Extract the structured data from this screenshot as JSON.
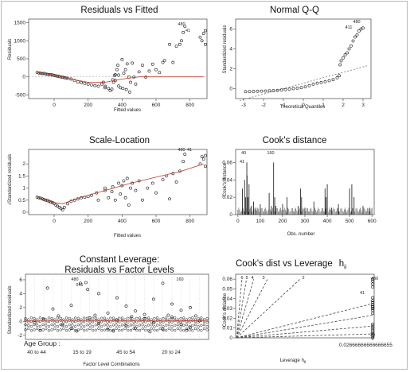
{
  "chart_data": [
    {
      "id": "rvf",
      "type": "scatter",
      "title": "Residuals vs Fitted",
      "xlabel": "Fitted values",
      "ylabel": "Residuals",
      "xlim": [
        -150,
        900
      ],
      "ylim": [
        -600,
        1600
      ],
      "xticks": [
        0,
        200,
        400,
        600,
        800
      ],
      "yticks": [
        -500,
        0,
        500,
        1000,
        1500
      ],
      "point_labels": [
        "480",
        "41"
      ],
      "points": [
        [
          -100,
          120
        ],
        [
          -90,
          110
        ],
        [
          -80,
          100
        ],
        [
          -70,
          90
        ],
        [
          -60,
          95
        ],
        [
          -50,
          80
        ],
        [
          -40,
          70
        ],
        [
          -30,
          65
        ],
        [
          -20,
          60
        ],
        [
          -10,
          55
        ],
        [
          0,
          40
        ],
        [
          10,
          30
        ],
        [
          20,
          20
        ],
        [
          30,
          10
        ],
        [
          40,
          0
        ],
        [
          50,
          -10
        ],
        [
          60,
          -20
        ],
        [
          70,
          -30
        ],
        [
          80,
          -40
        ],
        [
          100,
          -60
        ],
        [
          120,
          -100
        ],
        [
          140,
          -140
        ],
        [
          160,
          -160
        ],
        [
          180,
          -180
        ],
        [
          200,
          -200
        ],
        [
          220,
          -220
        ],
        [
          240,
          -240
        ],
        [
          260,
          -260
        ],
        [
          280,
          -200
        ],
        [
          290,
          -150
        ],
        [
          300,
          -260
        ],
        [
          300,
          -300
        ],
        [
          320,
          -320
        ],
        [
          330,
          -380
        ],
        [
          340,
          -340
        ],
        [
          345,
          -80
        ],
        [
          350,
          -150
        ],
        [
          355,
          40
        ],
        [
          360,
          -100
        ],
        [
          360,
          60
        ],
        [
          370,
          200
        ],
        [
          375,
          320
        ],
        [
          380,
          -250
        ],
        [
          380,
          50
        ],
        [
          390,
          -300
        ],
        [
          400,
          480
        ],
        [
          405,
          -320
        ],
        [
          410,
          100
        ],
        [
          420,
          200
        ],
        [
          425,
          -350
        ],
        [
          430,
          360
        ],
        [
          440,
          0
        ],
        [
          445,
          -420
        ],
        [
          450,
          -150
        ],
        [
          460,
          380
        ],
        [
          470,
          0
        ],
        [
          480,
          -200
        ],
        [
          500,
          140
        ],
        [
          520,
          320
        ],
        [
          540,
          -10
        ],
        [
          560,
          160
        ],
        [
          580,
          350
        ],
        [
          600,
          200
        ],
        [
          620,
          120
        ],
        [
          640,
          400
        ],
        [
          650,
          450
        ],
        [
          680,
          900
        ],
        [
          700,
          400
        ],
        [
          720,
          850
        ],
        [
          740,
          900
        ],
        [
          750,
          1000
        ],
        [
          760,
          1230
        ],
        [
          770,
          1400
        ],
        [
          860,
          1100
        ],
        [
          870,
          1000
        ],
        [
          880,
          1200
        ],
        [
          890,
          1280
        ],
        [
          890,
          900
        ]
      ],
      "smooth": [
        [
          -100,
          120
        ],
        [
          0,
          60
        ],
        [
          100,
          -60
        ],
        [
          200,
          -150
        ],
        [
          300,
          -150
        ],
        [
          400,
          -60
        ],
        [
          500,
          0
        ],
        [
          600,
          0
        ],
        [
          700,
          0
        ],
        [
          880,
          0
        ]
      ]
    },
    {
      "id": "qq",
      "type": "scatter",
      "title": "Normal Q-Q",
      "xlabel": "Theoretical Quantiles",
      "ylabel": "Standardized residuals",
      "xlim": [
        -3.4,
        3.4
      ],
      "ylim": [
        -1,
        7
      ],
      "xticks": [
        -3,
        -2,
        -1,
        0,
        1,
        2,
        3
      ],
      "yticks": [
        0,
        2,
        4,
        6
      ],
      "point_labels": [
        "480",
        "411"
      ],
      "points": [
        [
          -2.9,
          -0.3
        ],
        [
          -2.7,
          -0.3
        ],
        [
          -2.5,
          -0.28
        ],
        [
          -2.3,
          -0.26
        ],
        [
          -2.1,
          -0.25
        ],
        [
          -1.9,
          -0.24
        ],
        [
          -1.7,
          -0.22
        ],
        [
          -1.5,
          -0.2
        ],
        [
          -1.3,
          -0.18
        ],
        [
          -1.1,
          -0.14
        ],
        [
          -0.9,
          -0.1
        ],
        [
          -0.7,
          -0.05
        ],
        [
          -0.5,
          0.0
        ],
        [
          -0.3,
          0.05
        ],
        [
          -0.1,
          0.1
        ],
        [
          0.1,
          0.18
        ],
        [
          0.3,
          0.3
        ],
        [
          0.5,
          0.45
        ],
        [
          0.7,
          0.55
        ],
        [
          0.9,
          0.62
        ],
        [
          1.1,
          0.7
        ],
        [
          1.3,
          0.8
        ],
        [
          1.5,
          0.9
        ],
        [
          1.7,
          1.1
        ],
        [
          1.8,
          1.3
        ],
        [
          1.85,
          2.4
        ],
        [
          1.9,
          2.8
        ],
        [
          2.0,
          3.1
        ],
        [
          2.1,
          3.4
        ],
        [
          2.2,
          3.6
        ],
        [
          2.3,
          4.0
        ],
        [
          2.4,
          4.3
        ],
        [
          2.5,
          4.8
        ],
        [
          2.6,
          5.2
        ],
        [
          2.7,
          5.4
        ],
        [
          2.8,
          5.8
        ],
        [
          2.9,
          6.0
        ],
        [
          3.0,
          6.1
        ]
      ],
      "refline": [
        [
          -3.2,
          -1.2
        ],
        [
          3.2,
          2.3
        ]
      ]
    },
    {
      "id": "sl",
      "type": "scatter",
      "title": "Scale-Location",
      "xlabel": "Fitted values",
      "ylabel": "√Standardized residuals",
      "xlim": [
        -150,
        900
      ],
      "ylim": [
        -0.1,
        2.6
      ],
      "xticks": [
        0,
        200,
        400,
        600,
        800
      ],
      "yticks": [
        0.0,
        0.5,
        1.0,
        1.5,
        2.0
      ],
      "point_labels": [
        "480",
        "41"
      ],
      "points": [
        [
          -100,
          0.62
        ],
        [
          -90,
          0.6
        ],
        [
          -80,
          0.58
        ],
        [
          -70,
          0.55
        ],
        [
          -60,
          0.52
        ],
        [
          -50,
          0.5
        ],
        [
          -40,
          0.48
        ],
        [
          -30,
          0.45
        ],
        [
          -20,
          0.42
        ],
        [
          -10,
          0.4
        ],
        [
          0,
          0.36
        ],
        [
          10,
          0.3
        ],
        [
          20,
          0.25
        ],
        [
          30,
          0.2
        ],
        [
          40,
          0.15
        ],
        [
          50,
          0.1
        ],
        [
          60,
          0.2
        ],
        [
          80,
          0.35
        ],
        [
          100,
          0.45
        ],
        [
          120,
          0.5
        ],
        [
          140,
          0.55
        ],
        [
          160,
          0.6
        ],
        [
          180,
          0.62
        ],
        [
          200,
          0.65
        ],
        [
          220,
          0.7
        ],
        [
          250,
          0.8
        ],
        [
          260,
          0.5
        ],
        [
          300,
          0.9
        ],
        [
          300,
          1.0
        ],
        [
          320,
          0.6
        ],
        [
          340,
          0.85
        ],
        [
          345,
          1.05
        ],
        [
          360,
          0.5
        ],
        [
          380,
          1.2
        ],
        [
          390,
          0.75
        ],
        [
          400,
          1.1
        ],
        [
          410,
          1.3
        ],
        [
          420,
          0.6
        ],
        [
          430,
          1.4
        ],
        [
          440,
          0.3
        ],
        [
          450,
          1.0
        ],
        [
          460,
          1.2
        ],
        [
          480,
          0.9
        ],
        [
          500,
          1.3
        ],
        [
          520,
          0.5
        ],
        [
          550,
          1.0
        ],
        [
          580,
          1.2
        ],
        [
          600,
          0.8
        ],
        [
          640,
          1.35
        ],
        [
          660,
          1.5
        ],
        [
          680,
          0.55
        ],
        [
          700,
          1.6
        ],
        [
          720,
          1.25
        ],
        [
          740,
          1.7
        ],
        [
          760,
          2.1
        ],
        [
          770,
          2.4
        ],
        [
          860,
          2.0
        ],
        [
          870,
          2.3
        ],
        [
          880,
          2.2
        ],
        [
          890,
          2.35
        ],
        [
          890,
          1.9
        ]
      ],
      "smooth": [
        [
          -100,
          0.62
        ],
        [
          0,
          0.4
        ],
        [
          50,
          0.35
        ],
        [
          150,
          0.6
        ],
        [
          300,
          0.9
        ],
        [
          450,
          1.2
        ],
        [
          600,
          1.45
        ],
        [
          750,
          1.7
        ],
        [
          880,
          2.0
        ]
      ]
    },
    {
      "id": "cook",
      "type": "bar",
      "title": "Cook's distance",
      "xlabel": "Obs. number",
      "ylabel": "Cook's distance",
      "xlim": [
        -10,
        610
      ],
      "ylim": [
        0,
        0.075
      ],
      "xticks": [
        0,
        100,
        200,
        300,
        400,
        500,
        600
      ],
      "yticks": [
        0.0,
        0.02,
        0.04,
        0.06
      ],
      "point_labels": [
        "40",
        "160",
        "41"
      ],
      "spikes": [
        [
          20,
          0.03
        ],
        [
          30,
          0.04
        ],
        [
          35,
          0.02
        ],
        [
          40,
          0.06
        ],
        [
          41,
          0.045
        ],
        [
          45,
          0.02
        ],
        [
          50,
          0.035
        ],
        [
          60,
          0.01
        ],
        [
          70,
          0.015
        ],
        [
          80,
          0.008
        ],
        [
          100,
          0.012
        ],
        [
          140,
          0.025
        ],
        [
          150,
          0.01
        ],
        [
          160,
          0.06
        ],
        [
          165,
          0.02
        ],
        [
          170,
          0.01
        ],
        [
          200,
          0.012
        ],
        [
          220,
          0.02
        ],
        [
          270,
          0.01
        ],
        [
          280,
          0.03
        ],
        [
          285,
          0.02
        ],
        [
          300,
          0.008
        ],
        [
          340,
          0.015
        ],
        [
          390,
          0.03
        ],
        [
          395,
          0.02
        ],
        [
          400,
          0.035
        ],
        [
          420,
          0.008
        ],
        [
          450,
          0.012
        ],
        [
          500,
          0.03
        ],
        [
          510,
          0.035
        ],
        [
          520,
          0.02
        ],
        [
          560,
          0.01
        ],
        [
          590,
          0.008
        ]
      ]
    },
    {
      "id": "cl",
      "type": "scatter",
      "title": "Constant Leverage:",
      "subtitle": "Residuals vs Factor Levels",
      "xlabel": "Factor Level Combinations",
      "ylabel": "Standardized residuals",
      "xlim": [
        0,
        100
      ],
      "ylim": [
        -2.6,
        6.8
      ],
      "yticks": [
        -2,
        0,
        2,
        4,
        6
      ],
      "factor_title": "Age Group :",
      "factor_labels": [
        "40 to 44",
        "15 to 19",
        "45 to 54",
        "20 to 24"
      ],
      "point_labels": [
        "480",
        "041",
        "160"
      ],
      "points": [
        [
          12,
          4.8
        ],
        [
          30,
          5.5
        ],
        [
          33,
          5.6
        ],
        [
          34,
          4.6
        ],
        [
          40,
          4.0
        ],
        [
          50,
          3.4
        ],
        [
          55,
          2.2
        ],
        [
          60,
          1.5
        ],
        [
          70,
          3.2
        ],
        [
          75,
          5.5
        ],
        [
          80,
          2.5
        ],
        [
          90,
          2.0
        ],
        [
          15,
          1.8
        ],
        [
          25,
          2.3
        ],
        [
          45,
          1.2
        ],
        [
          65,
          1.0
        ],
        [
          85,
          1.6
        ],
        [
          5,
          -0.2
        ],
        [
          10,
          0.3
        ],
        [
          20,
          -0.5
        ],
        [
          25,
          -1.0
        ],
        [
          35,
          0.5
        ],
        [
          40,
          -0.3
        ],
        [
          45,
          -1.2
        ],
        [
          50,
          0.2
        ],
        [
          55,
          -0.6
        ],
        [
          60,
          -1.0
        ],
        [
          65,
          0.4
        ],
        [
          70,
          -0.2
        ],
        [
          75,
          -1.1
        ],
        [
          80,
          0.6
        ],
        [
          85,
          -0.4
        ],
        [
          90,
          -0.9
        ],
        [
          95,
          0.1
        ],
        [
          8,
          -1.3
        ],
        [
          28,
          -1.4
        ],
        [
          48,
          -1.4
        ],
        [
          68,
          -1.5
        ],
        [
          88,
          -1.3
        ],
        [
          18,
          0.8
        ],
        [
          38,
          0.9
        ],
        [
          58,
          0.7
        ],
        [
          78,
          0.9
        ],
        [
          93,
          0.8
        ]
      ]
    },
    {
      "id": "cdl",
      "type": "scatter",
      "title": "Cook's dist vs Leverage",
      "title_formula": "h",
      "title_sub": "ii",
      "xlabel": "Leverage",
      "xlabel_sub": "ii",
      "ylabel": "Cook's distance",
      "xlim": [
        0,
        0.0269
      ],
      "ylim": [
        0,
        0.065
      ],
      "xtick_text": "0.02666666666666655",
      "yticks": [
        0.0,
        0.01,
        0.02,
        0.03,
        0.04,
        0.05,
        0.06
      ],
      "contour_labels": [
        "6",
        "5",
        "4",
        "3",
        "2"
      ],
      "point_labels": [
        "480",
        "41",
        "11",
        "30"
      ],
      "contours": [
        [
          [
            0.0002,
            0.0
          ],
          [
            0.0012,
            0.06
          ]
        ],
        [
          [
            0.0002,
            0.0
          ],
          [
            0.0021,
            0.06
          ]
        ],
        [
          [
            0.0002,
            0.0
          ],
          [
            0.0035,
            0.06
          ]
        ],
        [
          [
            0.0002,
            0.0
          ],
          [
            0.0062,
            0.06
          ]
        ],
        [
          [
            0.0002,
            0.0
          ],
          [
            0.0125,
            0.06
          ]
        ],
        [
          [
            0.0002,
            0.0
          ],
          [
            0.0266,
            0.035
          ]
        ],
        [
          [
            0.0002,
            0.0
          ],
          [
            0.0266,
            0.023
          ]
        ],
        [
          [
            0.0002,
            0.0
          ],
          [
            0.0266,
            0.012
          ]
        ],
        [
          [
            0.0002,
            0.0
          ],
          [
            0.0266,
            0.004
          ]
        ]
      ],
      "points": [
        [
          0.0266,
          0.0
        ],
        [
          0.0266,
          0.002
        ],
        [
          0.0266,
          0.004
        ],
        [
          0.0266,
          0.006
        ],
        [
          0.0266,
          0.008
        ],
        [
          0.0266,
          0.01
        ],
        [
          0.0266,
          0.012
        ],
        [
          0.0266,
          0.014
        ],
        [
          0.0266,
          0.025
        ],
        [
          0.0266,
          0.028
        ],
        [
          0.0266,
          0.03
        ],
        [
          0.0266,
          0.032
        ],
        [
          0.0266,
          0.034
        ],
        [
          0.0266,
          0.036
        ],
        [
          0.0266,
          0.038
        ],
        [
          0.0266,
          0.041
        ],
        [
          0.0266,
          0.052
        ],
        [
          0.0266,
          0.055
        ],
        [
          0.0266,
          0.058
        ],
        [
          0.0266,
          0.06
        ]
      ]
    }
  ]
}
